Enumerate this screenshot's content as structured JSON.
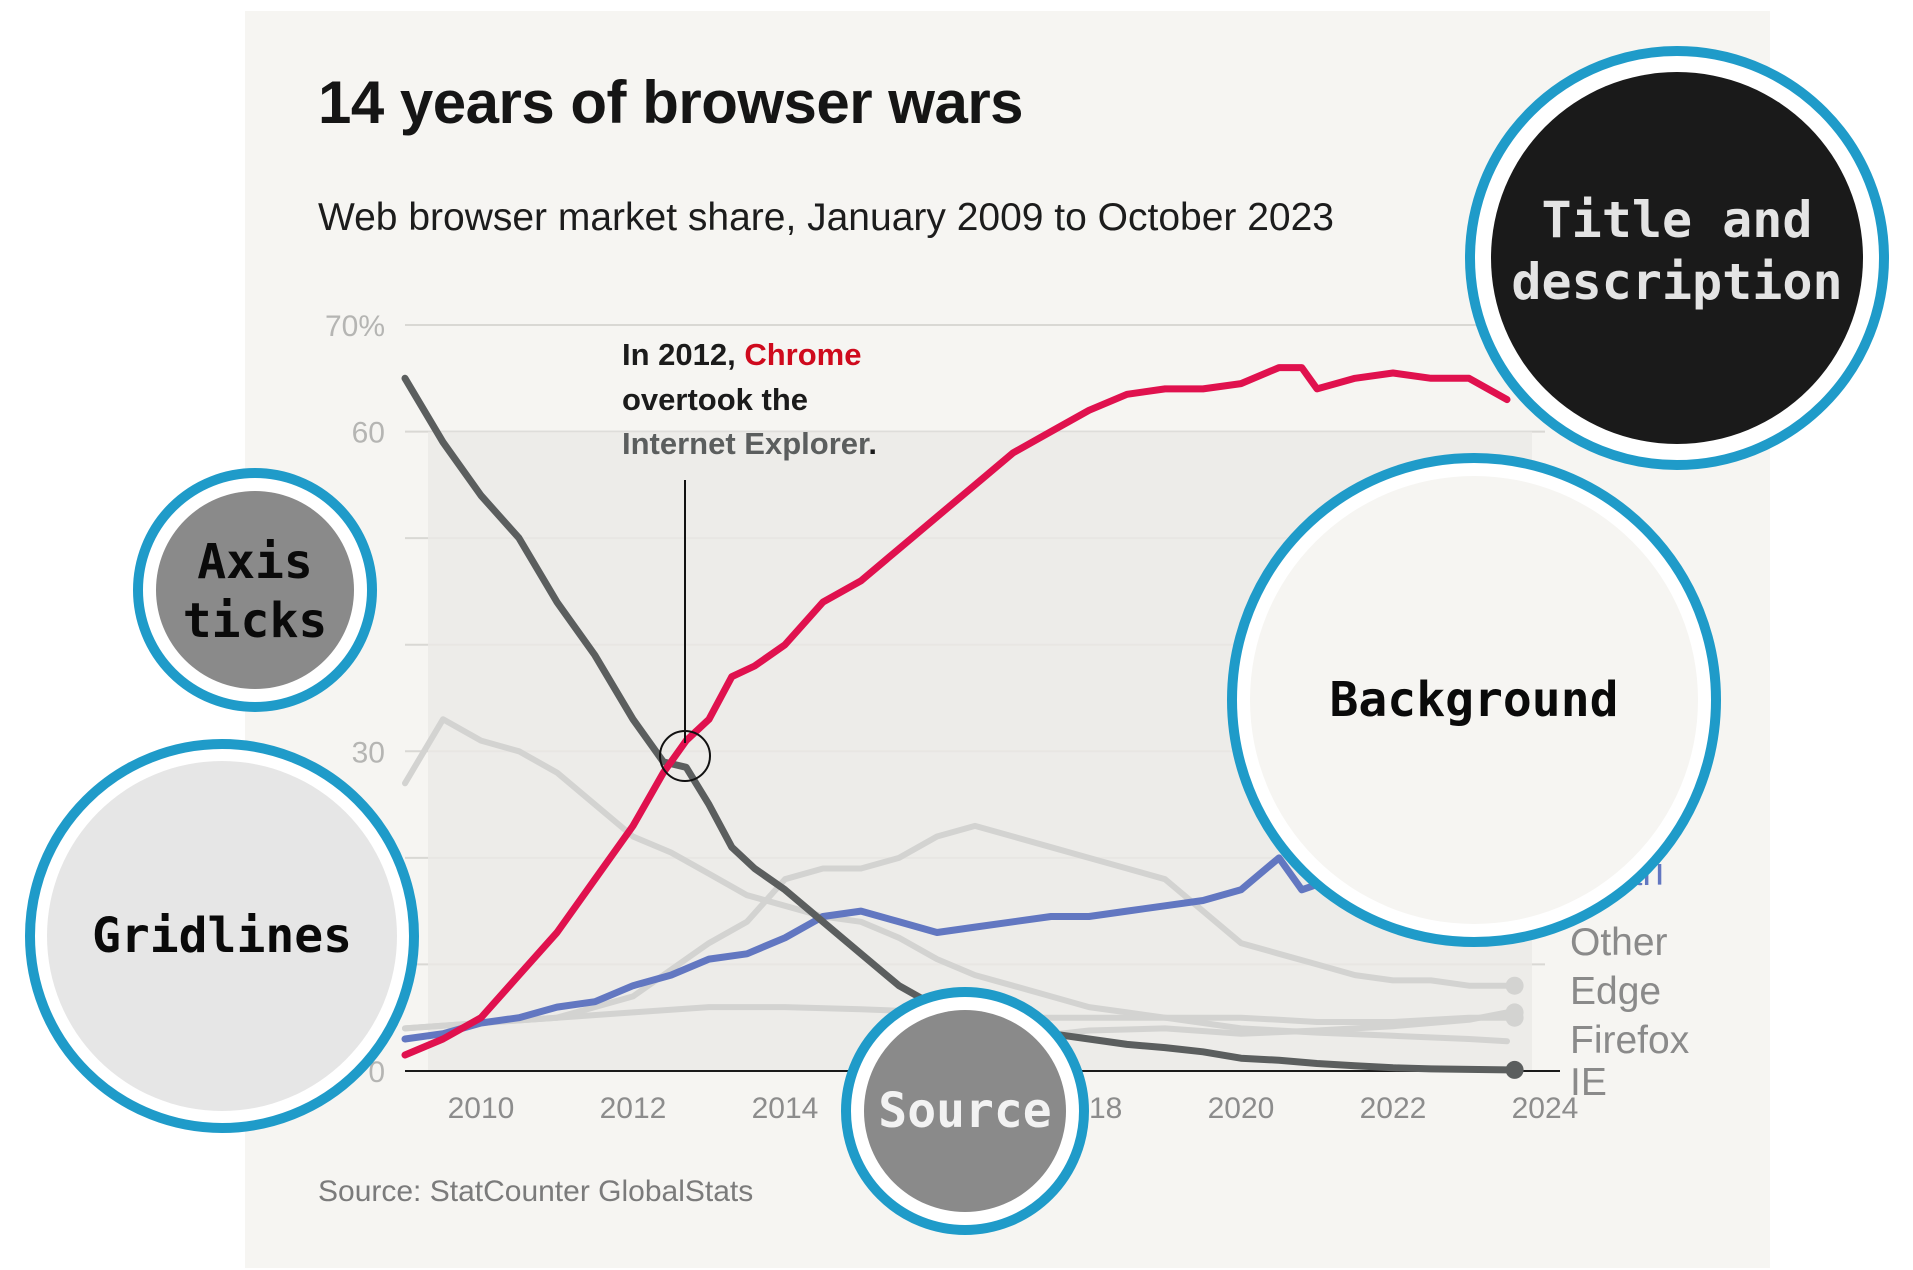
{
  "title": "14 years of browser wars",
  "subtitle": "Web browser market share, January 2009 to October 2023",
  "source": "Source: StatCounter GlobalStats",
  "annotation": {
    "line1_prefix": "In 2012, ",
    "line1_highlight": "Chrome",
    "line2": "overtook the",
    "line3_bold": "Internet Explorer",
    "line3_suffix": "."
  },
  "callouts": {
    "title_and_description_line1": "Title and",
    "title_and_description_line2": "description",
    "axis_ticks_line1": "Axis",
    "axis_ticks_line2": "ticks",
    "gridlines": "Gridlines",
    "background": "Background",
    "source": "Source"
  },
  "colors": {
    "chrome": "#e0114e",
    "ie": "#5b5e5e",
    "safari": "#6277c1",
    "grey_series": "#d3d3d1",
    "callout_ring": "#1f9bc9"
  },
  "chart_data": {
    "type": "line",
    "x_ticks": [
      "2010",
      "2012",
      "2014",
      "2018",
      "2020",
      "2022",
      "2024"
    ],
    "y_ticks": [
      "70%",
      "60",
      "30",
      "0"
    ],
    "ylim": [
      0,
      70
    ],
    "xlim": [
      2009,
      2024
    ],
    "grid": true,
    "legend_placement": "right end labels",
    "series": [
      {
        "name": "Chrome",
        "points": [
          [
            2009.0,
            1.5
          ],
          [
            2009.5,
            3
          ],
          [
            2010.0,
            5
          ],
          [
            2010.5,
            9
          ],
          [
            2011.0,
            13
          ],
          [
            2011.5,
            18
          ],
          [
            2012.0,
            23
          ],
          [
            2012.4,
            28
          ],
          [
            2012.7,
            31
          ],
          [
            2013.0,
            33
          ],
          [
            2013.3,
            37
          ],
          [
            2013.6,
            38
          ],
          [
            2014.0,
            40
          ],
          [
            2014.5,
            44
          ],
          [
            2015.0,
            46
          ],
          [
            2015.5,
            49
          ],
          [
            2016.0,
            52
          ],
          [
            2016.5,
            55
          ],
          [
            2017.0,
            58
          ],
          [
            2017.5,
            60
          ],
          [
            2018.0,
            62
          ],
          [
            2018.5,
            63.5
          ],
          [
            2019.0,
            64
          ],
          [
            2019.5,
            64
          ],
          [
            2020.0,
            64.5
          ],
          [
            2020.5,
            66
          ],
          [
            2020.8,
            66
          ],
          [
            2021.0,
            64
          ],
          [
            2021.5,
            65
          ],
          [
            2022.0,
            65.5
          ],
          [
            2022.5,
            65
          ],
          [
            2023.0,
            65
          ],
          [
            2023.5,
            63
          ]
        ]
      },
      {
        "name": "IE",
        "points": [
          [
            2009.0,
            65
          ],
          [
            2009.5,
            59
          ],
          [
            2010.0,
            54
          ],
          [
            2010.5,
            50
          ],
          [
            2011.0,
            44
          ],
          [
            2011.5,
            39
          ],
          [
            2012.0,
            33
          ],
          [
            2012.4,
            29
          ],
          [
            2012.7,
            28.5
          ],
          [
            2013.0,
            25
          ],
          [
            2013.3,
            21
          ],
          [
            2013.6,
            19
          ],
          [
            2014.0,
            17
          ],
          [
            2014.5,
            14
          ],
          [
            2015.0,
            11
          ],
          [
            2015.5,
            8
          ],
          [
            2016.0,
            6
          ],
          [
            2016.5,
            4.5
          ],
          [
            2017.0,
            4
          ],
          [
            2017.5,
            3.5
          ],
          [
            2018.0,
            3
          ],
          [
            2018.5,
            2.5
          ],
          [
            2019.0,
            2.2
          ],
          [
            2019.5,
            1.8
          ],
          [
            2020.0,
            1.2
          ],
          [
            2020.5,
            1
          ],
          [
            2021.0,
            0.7
          ],
          [
            2021.5,
            0.5
          ],
          [
            2022.0,
            0.3
          ],
          [
            2022.5,
            0.2
          ],
          [
            2023.0,
            0.15
          ],
          [
            2023.5,
            0.1
          ]
        ]
      },
      {
        "name": "Safari",
        "points": [
          [
            2009.0,
            3
          ],
          [
            2009.5,
            3.5
          ],
          [
            2010.0,
            4.5
          ],
          [
            2010.5,
            5
          ],
          [
            2011.0,
            6
          ],
          [
            2011.5,
            6.5
          ],
          [
            2012.0,
            8
          ],
          [
            2012.5,
            9
          ],
          [
            2013.0,
            10.5
          ],
          [
            2013.5,
            11
          ],
          [
            2014.0,
            12.5
          ],
          [
            2014.5,
            14.5
          ],
          [
            2015.0,
            15
          ],
          [
            2015.5,
            14
          ],
          [
            2016.0,
            13
          ],
          [
            2016.5,
            13.5
          ],
          [
            2017.0,
            14
          ],
          [
            2017.5,
            14.5
          ],
          [
            2018.0,
            14.5
          ],
          [
            2018.5,
            15
          ],
          [
            2019.0,
            15.5
          ],
          [
            2019.5,
            16
          ],
          [
            2020.0,
            17
          ],
          [
            2020.5,
            20
          ],
          [
            2020.8,
            17
          ],
          [
            2021.0,
            17.5
          ]
        ]
      },
      {
        "points": [
          [
            2009.0,
            27
          ],
          [
            2009.5,
            33
          ],
          [
            2010.0,
            31
          ],
          [
            2010.5,
            30
          ],
          [
            2011.0,
            28
          ],
          [
            2011.5,
            25
          ],
          [
            2012.0,
            22
          ],
          [
            2012.5,
            20.5
          ],
          [
            2013.0,
            18.5
          ],
          [
            2013.5,
            16.5
          ],
          [
            2014.0,
            15.5
          ],
          [
            2014.5,
            14.5
          ],
          [
            2015.0,
            14
          ],
          [
            2015.5,
            12.5
          ],
          [
            2016.0,
            10.5
          ],
          [
            2016.5,
            9
          ],
          [
            2017.0,
            8
          ],
          [
            2017.5,
            7
          ],
          [
            2018.0,
            6
          ],
          [
            2018.5,
            5.5
          ],
          [
            2019.0,
            5
          ],
          [
            2019.5,
            4.5
          ],
          [
            2020.0,
            4
          ],
          [
            2020.5,
            3.8
          ],
          [
            2021.0,
            3.6
          ],
          [
            2022.0,
            3.3
          ],
          [
            2023.0,
            3
          ],
          [
            2023.5,
            2.8
          ]
        ]
      },
      {
        "points": [
          [
            2009.0,
            4
          ],
          [
            2010.0,
            4.5
          ],
          [
            2011.0,
            5
          ],
          [
            2012.0,
            7
          ],
          [
            2013.0,
            12
          ],
          [
            2013.5,
            14
          ],
          [
            2014.0,
            18
          ],
          [
            2014.5,
            19
          ],
          [
            2015.0,
            19
          ],
          [
            2015.5,
            20
          ],
          [
            2016.0,
            22
          ],
          [
            2016.5,
            23
          ],
          [
            2017.0,
            22
          ],
          [
            2017.5,
            21
          ],
          [
            2018.0,
            20
          ],
          [
            2018.5,
            19
          ],
          [
            2019.0,
            18
          ],
          [
            2019.5,
            15
          ],
          [
            2020.0,
            12
          ],
          [
            2020.5,
            11
          ],
          [
            2021.0,
            10
          ],
          [
            2021.5,
            9
          ],
          [
            2022.0,
            8.5
          ],
          [
            2022.5,
            8.5
          ],
          [
            2023.0,
            8
          ],
          [
            2023.5,
            8
          ]
        ]
      },
      {
        "points": [
          [
            2009.0,
            4
          ],
          [
            2010.0,
            4.5
          ],
          [
            2011.0,
            5
          ],
          [
            2012.0,
            5.5
          ],
          [
            2013.0,
            6
          ],
          [
            2014.0,
            6
          ],
          [
            2015.0,
            5.8
          ],
          [
            2016.0,
            5.5
          ],
          [
            2017.0,
            5
          ],
          [
            2018.0,
            5
          ],
          [
            2019.0,
            5
          ],
          [
            2020.0,
            5
          ],
          [
            2020.5,
            4.8
          ],
          [
            2021.0,
            4.6
          ],
          [
            2022.0,
            4.6
          ],
          [
            2023.0,
            5
          ],
          [
            2023.5,
            5
          ]
        ]
      },
      {
        "points": [
          [
            2015.5,
            1
          ],
          [
            2016.0,
            2
          ],
          [
            2017.0,
            3
          ],
          [
            2018.0,
            3.8
          ],
          [
            2019.0,
            4
          ],
          [
            2020.0,
            3.5
          ],
          [
            2021.0,
            3.8
          ],
          [
            2022.0,
            4.2
          ],
          [
            2023.0,
            4.8
          ],
          [
            2023.5,
            5.5
          ]
        ]
      }
    ],
    "end_labels": [
      "Safari",
      "Other",
      "Edge",
      "Firefox",
      "IE"
    ]
  }
}
